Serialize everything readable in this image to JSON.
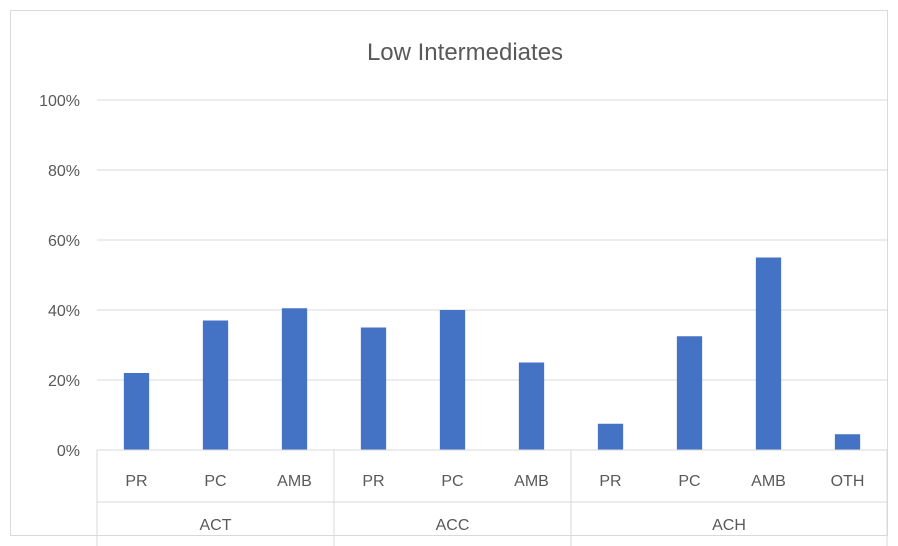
{
  "chart_data": {
    "type": "bar",
    "title": "Low Intermediates",
    "xlabel": "",
    "ylabel": "",
    "ylim": [
      0,
      100
    ],
    "yticks": [
      "0%",
      "20%",
      "40%",
      "60%",
      "80%",
      "100%"
    ],
    "grid": true,
    "legend": "none",
    "bar_color": "#4472c4",
    "groups": [
      {
        "name": "ACT",
        "categories": [
          "PR",
          "PC",
          "AMB"
        ],
        "values": [
          22,
          37,
          40.5
        ]
      },
      {
        "name": "ACC",
        "categories": [
          "PR",
          "PC",
          "AMB"
        ],
        "values": [
          35,
          40,
          25
        ]
      },
      {
        "name": "ACH",
        "categories": [
          "PR",
          "PC",
          "AMB",
          "OTH"
        ],
        "values": [
          7.5,
          32.5,
          55,
          4.5
        ]
      }
    ]
  }
}
